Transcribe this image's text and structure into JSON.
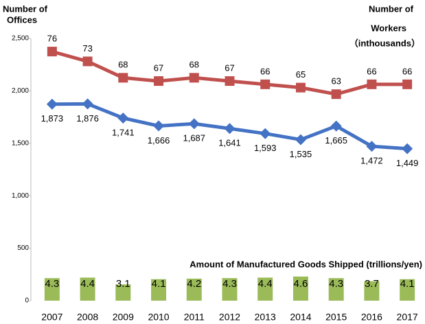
{
  "chart_data": {
    "type": "line",
    "ylabel": [
      "Number of",
      "Offices"
    ],
    "y2label": [
      "Number of",
      "Workers",
      "（inthousands）"
    ],
    "categories": [
      "2007",
      "2008",
      "2009",
      "2010",
      "2011",
      "2012",
      "2013",
      "2014",
      "2015",
      "2016",
      "2017"
    ],
    "ylim": [
      0,
      2500
    ],
    "yticks": [
      0,
      500,
      {
        "value": 1000,
        "label": "1,000"
      },
      {
        "value": 1500,
        "label": "1,500"
      },
      {
        "value": 2000,
        "label": "2,000"
      },
      {
        "value": 2500,
        "label": "2,500"
      }
    ],
    "y2lim": [
      0,
      80
    ],
    "y3lim": [
      0,
      50
    ],
    "series": [
      {
        "color": "#4472c4",
        "marker": "diamond",
        "axis": "y",
        "values": [
          1873,
          1876,
          1741,
          1666,
          1687,
          1641,
          1593,
          1535,
          1665,
          1472,
          1449
        ],
        "value_labels": [
          "1,873",
          "1,876",
          "1,741",
          "1,666",
          "1,687",
          "1,641",
          "1,593",
          "1,535",
          "1,665",
          "1,472",
          "1,449"
        ]
      },
      {
        "color": "#c0504d",
        "marker": "square",
        "axis": "y2",
        "values": [
          76,
          73,
          68,
          67,
          68,
          67,
          66,
          65,
          63,
          66,
          66
        ]
      },
      {
        "name": "Amount of Manufactured Goods Shipped (trillions/yen)",
        "color": "#9bbb59",
        "type": "bar",
        "axis": "y3",
        "values": [
          4.3,
          4.4,
          3.1,
          4.1,
          4.2,
          4.3,
          4.4,
          4.6,
          4.3,
          3.7,
          4.1
        ]
      }
    ]
  }
}
